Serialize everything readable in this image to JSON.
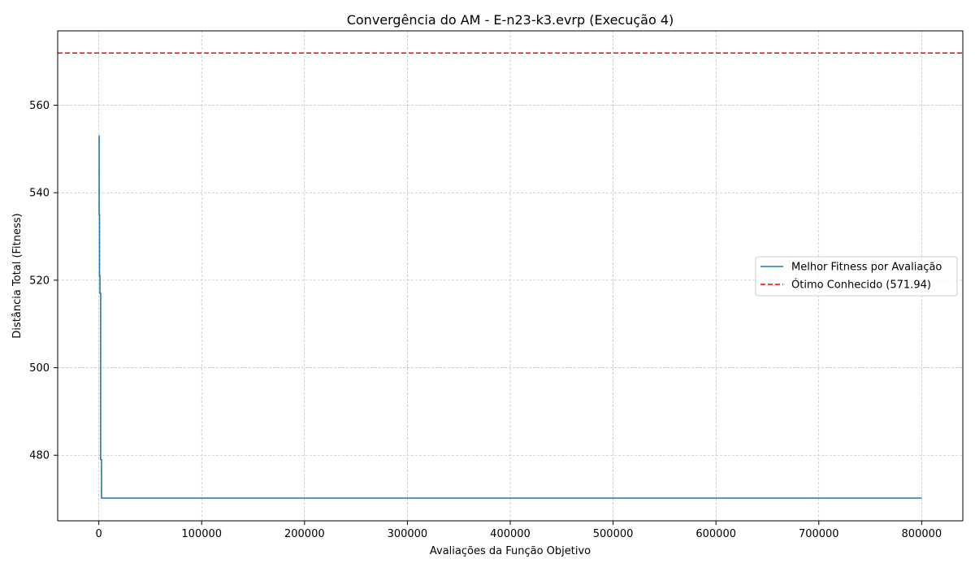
{
  "chart_data": {
    "type": "line",
    "title": "Convergência do AM - E-n23-k3.evrp (Execução 4)",
    "xlabel": "Avaliações da Função Objetivo",
    "ylabel": "Distância Total (Fitness)",
    "xlim": [
      -40000,
      840000
    ],
    "ylim": [
      465,
      577
    ],
    "xticks": [
      0,
      100000,
      200000,
      300000,
      400000,
      500000,
      600000,
      700000,
      800000
    ],
    "xtick_labels": [
      "0",
      "100000",
      "200000",
      "300000",
      "400000",
      "500000",
      "600000",
      "700000",
      "800000"
    ],
    "yticks": [
      480,
      500,
      520,
      540,
      560
    ],
    "ytick_labels": [
      "480",
      "500",
      "520",
      "540",
      "560"
    ],
    "grid": true,
    "legend_position": "center-right",
    "series": [
      {
        "name": "Melhor Fitness por Avaliação",
        "color": "#1f77b4",
        "style": "solid",
        "points": [
          [
            0,
            553
          ],
          [
            300,
            553
          ],
          [
            300,
            535
          ],
          [
            700,
            535
          ],
          [
            700,
            521
          ],
          [
            1100,
            521
          ],
          [
            1100,
            517
          ],
          [
            1800,
            517
          ],
          [
            1800,
            479
          ],
          [
            2600,
            479
          ],
          [
            2600,
            470.2
          ],
          [
            800000,
            470.2
          ]
        ]
      }
    ],
    "reference_lines": [
      {
        "name": "Ótimo Conhecido (571.94)",
        "value": 571.94,
        "color": "#ff0000",
        "style": "dashed"
      }
    ]
  }
}
